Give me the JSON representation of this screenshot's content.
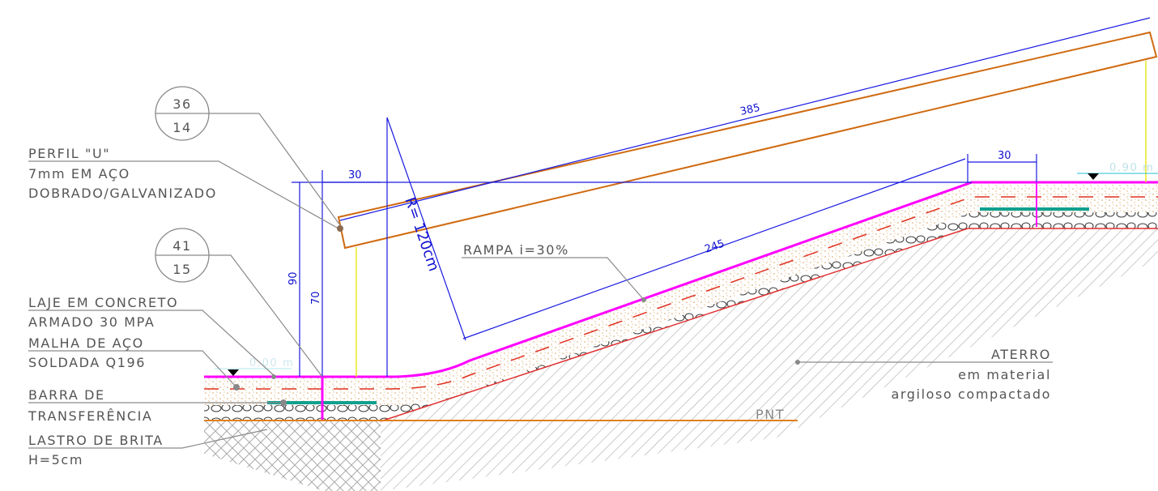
{
  "callouts": [
    {
      "top": "36",
      "bottom": "14"
    },
    {
      "top": "41",
      "bottom": "15"
    }
  ],
  "notes": [
    {
      "lines": [
        "PERFIL \"U\"",
        "7mm EM AÇO",
        "DOBRADO/GALVANIZADO"
      ]
    },
    {
      "lines": [
        "LAJE EM CONCRETO",
        "ARMADO 30 MPA"
      ]
    },
    {
      "lines": [
        "MALHA DE AÇO",
        "SOLDADA Q196"
      ]
    },
    {
      "lines": [
        "BARRA DE",
        "TRANSFERÊNCIA"
      ]
    },
    {
      "lines": [
        "LASTRO DE BRITA",
        "H=5cm"
      ]
    }
  ],
  "ramp_label": "RAMPA i=30%",
  "fill_label": {
    "lines": [
      "ATERRO",
      "em material",
      "argiloso compactado"
    ]
  },
  "ground_label": "PNT",
  "levels": [
    "0.00 m",
    "0.90 m"
  ],
  "dimensions": {
    "rail_length": 385,
    "ramp_length": 245,
    "left_offset": 30,
    "right_offset": 30,
    "rail_height": 90,
    "post_height": 70,
    "radius": "R= 120cm"
  }
}
